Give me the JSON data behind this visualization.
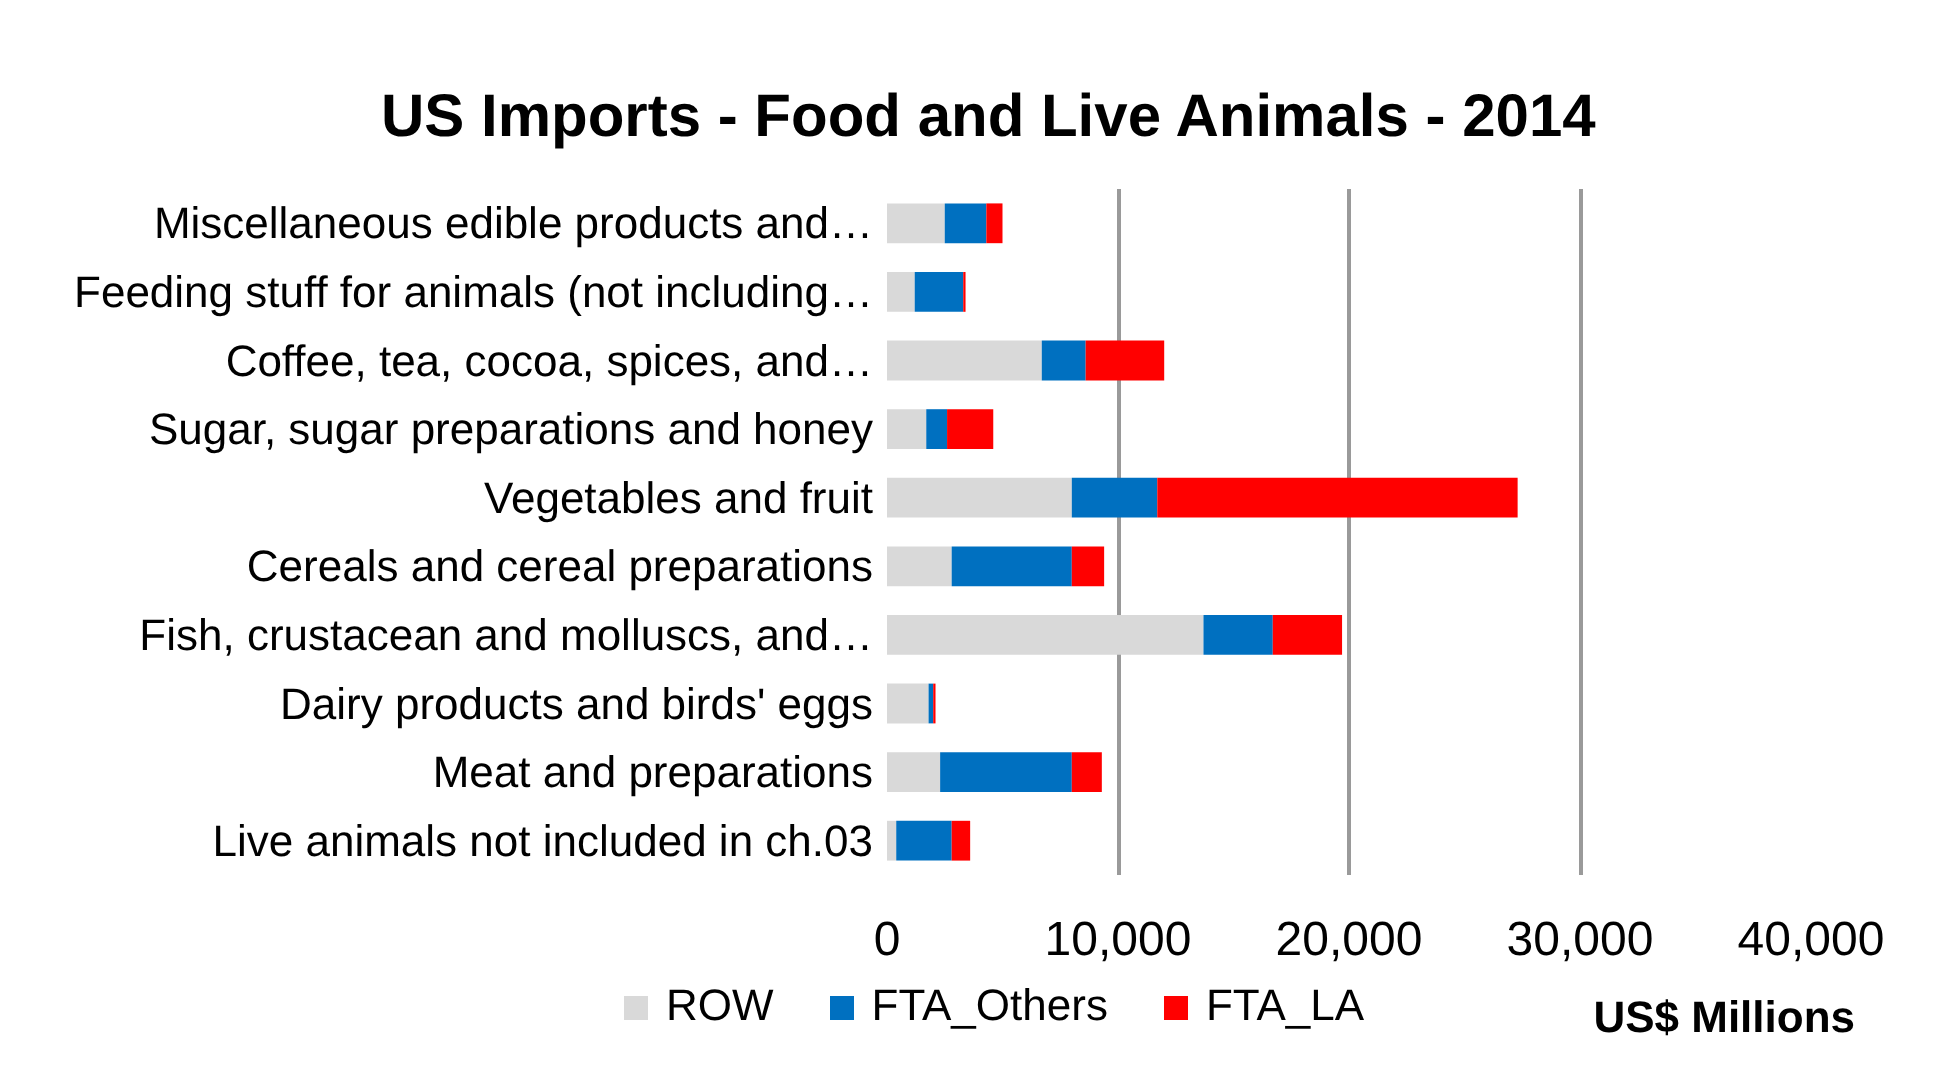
{
  "chart_data": {
    "type": "bar",
    "orientation": "horizontal",
    "stacked": true,
    "title": "US Imports - Food and Live Animals - 2014",
    "xlabel": "US$ Millions",
    "categories": [
      "Miscellaneous edible products and…",
      "Feeding stuff for animals (not including…",
      "Coffee, tea, cocoa, spices, and…",
      "Sugar, sugar preparations and honey",
      "Vegetables and fruit",
      "Cereals and cereal preparations",
      "Fish, crustacean and molluscs, and…",
      "Dairy products and birds' eggs",
      "Meat and preparations",
      "Live animals not included in ch.03"
    ],
    "series": [
      {
        "name": "ROW",
        "color": "#d9d9d9",
        "values": [
          2500,
          1200,
          6700,
          1700,
          8000,
          2800,
          13700,
          1800,
          2300,
          400
        ]
      },
      {
        "name": "FTA_Others",
        "color": "#0070c0",
        "values": [
          1800,
          2100,
          1900,
          900,
          3700,
          5200,
          3000,
          200,
          5700,
          2400
        ]
      },
      {
        "name": "FTA_LA",
        "color": "#ff0000",
        "values": [
          700,
          100,
          3400,
          2000,
          15600,
          1400,
          3000,
          100,
          1300,
          800
        ]
      }
    ],
    "xlim": [
      0,
      40000
    ],
    "xticks": [
      0,
      {
        "value": 10000,
        "label": "10,000"
      },
      {
        "value": 20000,
        "label": "20,000"
      },
      {
        "value": 30000,
        "label": "30,000"
      },
      {
        "value": 40000,
        "label": "40,000"
      }
    ],
    "grid": "x",
    "legend": "bottom"
  }
}
